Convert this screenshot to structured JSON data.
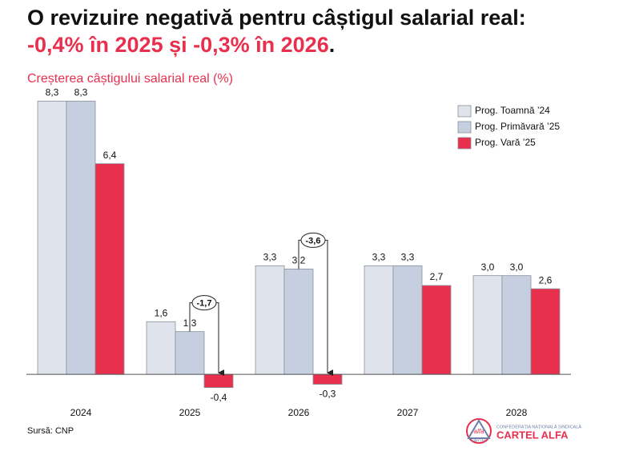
{
  "chart_data": {
    "type": "bar",
    "title_parts": [
      "O revizuire negativă pentru câștigul salarial real: ",
      "-0,4% în 2025 și -0,3% în 2026",
      "."
    ],
    "subtitle": "Creșterea câștigului salarial real (%)",
    "source": "Sursă: CNP",
    "categories": [
      "2024",
      "2025",
      "2026",
      "2027",
      "2028"
    ],
    "series": [
      {
        "name": "Prog. Toamnă ’24",
        "color": "#dfe3ec",
        "values": [
          8.3,
          1.6,
          3.3,
          3.3,
          3.0
        ],
        "value_labels": [
          "8,3",
          "1,6",
          "3,3",
          "3,3",
          "3,0"
        ]
      },
      {
        "name": "Prog. Primăvară ’25",
        "color": "#c6cfe0",
        "values": [
          8.3,
          1.3,
          3.2,
          3.3,
          3.0
        ],
        "value_labels": [
          "8,3",
          "1,3",
          "3,2",
          "3,3",
          "3,0"
        ]
      },
      {
        "name": "Prog. Vară ’25",
        "color": "#e8304e",
        "values": [
          6.4,
          -0.4,
          -0.3,
          2.7,
          2.6
        ],
        "value_labels": [
          "6,4",
          "-0,4",
          "-0,3",
          "2,7",
          "2,6"
        ]
      }
    ],
    "annotations": [
      {
        "category": "2025",
        "value": -1.7,
        "label": "-1,7"
      },
      {
        "category": "2026",
        "value": -3.6,
        "label": "-3,6"
      }
    ],
    "ylim": [
      -0.7,
      8.7
    ],
    "legend": "top-right",
    "logo": {
      "mark": "alfa",
      "sub": "CARTEL",
      "org": "CONFEDERAȚIA NAȚIONALĂ SINDICALĂ",
      "name": "CARTEL ALFA"
    }
  }
}
